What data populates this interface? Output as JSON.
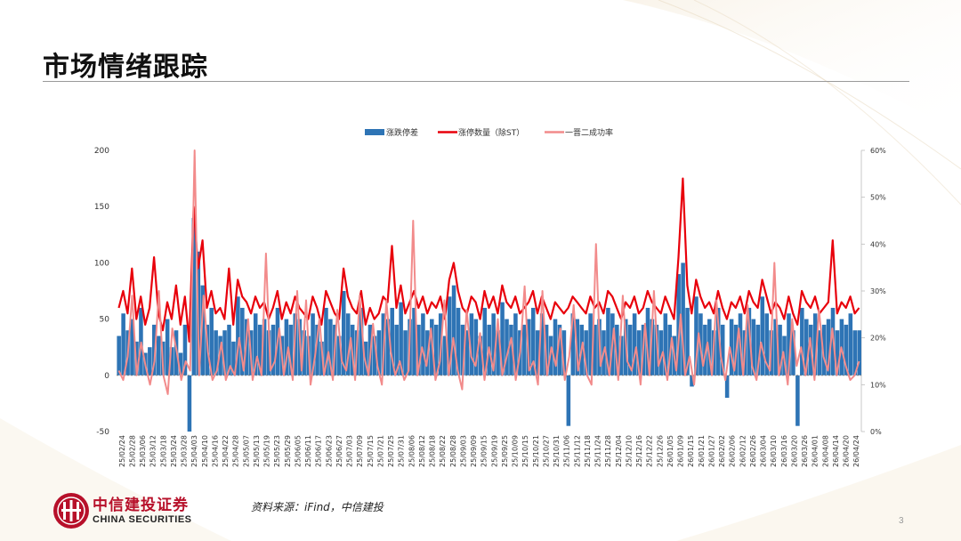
{
  "page": {
    "title": "市场情绪跟踪",
    "source": "资料来源：iFind，中信建投",
    "page_number": "3",
    "logo_cn": "中信建投证券",
    "logo_en": "CHINA SECURITIES",
    "colors": {
      "bar": "#2e74b5",
      "line_main": "#e8000b",
      "line_rate": "#f28b8b",
      "brand": "#b7102a"
    }
  },
  "chart_data": {
    "type": "bar+line",
    "legend": [
      "涨跌停差",
      "涨停数量（除ST）",
      "一晋二成功率"
    ],
    "y_left_ticks": [
      "200",
      "150",
      "100",
      "50",
      "0",
      "-50"
    ],
    "y_right_ticks": [
      "60%",
      "50%",
      "40%",
      "30%",
      "20%",
      "10%",
      "0%"
    ],
    "ylim_left": [
      -50,
      200
    ],
    "ylim_right": [
      0,
      60
    ],
    "x_tick_labels": [
      "25/02/24",
      "25/02/28",
      "25/03/06",
      "25/03/12",
      "25/03/18",
      "25/03/24",
      "25/03/28",
      "25/04/03",
      "25/04/10",
      "25/04/16",
      "25/04/22",
      "25/04/28",
      "25/05/07",
      "25/05/13",
      "25/05/19",
      "25/05/23",
      "25/05/29",
      "25/06/05",
      "25/06/11",
      "25/06/17",
      "25/06/23",
      "25/06/27",
      "25/07/03",
      "25/07/09",
      "25/07/15",
      "25/07/21",
      "25/07/25",
      "25/07/31",
      "25/08/06",
      "25/08/12",
      "25/08/18",
      "25/08/22",
      "25/08/28",
      "25/09/03",
      "25/09/09",
      "25/09/15",
      "25/09/19",
      "25/09/25",
      "25/10/09",
      "25/10/15",
      "25/10/21",
      "25/10/27",
      "25/10/31",
      "25/11/06",
      "25/11/12",
      "25/11/18",
      "25/11/24",
      "25/11/28",
      "25/12/04",
      "25/12/10",
      "25/12/16",
      "25/12/22",
      "25/12/26",
      "26/01/05",
      "26/01/09",
      "26/01/15",
      "26/01/21",
      "26/01/27",
      "26/02/02",
      "26/02/06",
      "26/02/12",
      "26/02/26",
      "26/03/04",
      "26/03/10",
      "26/03/16",
      "26/03/20",
      "26/03/26",
      "26/04/01",
      "26/04/08",
      "26/04/14",
      "26/04/20",
      "26/04/24"
    ],
    "series": [
      {
        "name": "涨跌停差",
        "type": "bar",
        "values": [
          35,
          55,
          40,
          50,
          30,
          60,
          20,
          25,
          45,
          35,
          30,
          50,
          25,
          40,
          20,
          45,
          -50,
          140,
          110,
          80,
          45,
          60,
          40,
          35,
          40,
          45,
          30,
          70,
          60,
          50,
          40,
          55,
          45,
          50,
          40,
          45,
          60,
          35,
          50,
          45,
          55,
          50,
          40,
          35,
          55,
          45,
          30,
          60,
          50,
          45,
          35,
          75,
          55,
          45,
          40,
          60,
          30,
          45,
          35,
          40,
          55,
          50,
          60,
          45,
          65,
          40,
          50,
          60,
          45,
          55,
          40,
          50,
          45,
          55,
          35,
          70,
          80,
          60,
          45,
          40,
          55,
          50,
          35,
          60,
          45,
          55,
          40,
          65,
          50,
          45,
          55,
          40,
          45,
          50,
          60,
          40,
          55,
          45,
          35,
          50,
          45,
          40,
          -45,
          55,
          50,
          45,
          40,
          55,
          45,
          50,
          40,
          60,
          55,
          45,
          35,
          50,
          45,
          55,
          40,
          45,
          60,
          50,
          45,
          40,
          55,
          45,
          35,
          90,
          100,
          60,
          -10,
          70,
          55,
          45,
          50,
          40,
          60,
          45,
          -20,
          50,
          45,
          55,
          40,
          60,
          50,
          45,
          70,
          55,
          40,
          50,
          45,
          35,
          55,
          40,
          -45,
          60,
          50,
          45,
          55,
          40,
          45,
          50,
          60,
          40,
          50,
          45,
          55,
          40,
          40
        ]
      },
      {
        "name": "涨停数量（除ST）",
        "type": "line",
        "values": [
          60,
          75,
          55,
          95,
          50,
          70,
          45,
          60,
          105,
          55,
          40,
          65,
          50,
          80,
          45,
          70,
          30,
          150,
          95,
          120,
          60,
          75,
          55,
          60,
          50,
          95,
          45,
          85,
          70,
          65,
          55,
          70,
          60,
          65,
          50,
          60,
          75,
          50,
          65,
          55,
          70,
          60,
          55,
          50,
          70,
          60,
          45,
          75,
          65,
          55,
          50,
          95,
          70,
          60,
          55,
          75,
          45,
          60,
          50,
          55,
          70,
          65,
          115,
          60,
          80,
          55,
          65,
          75,
          60,
          70,
          55,
          65,
          60,
          70,
          50,
          85,
          100,
          75,
          60,
          55,
          70,
          65,
          50,
          75,
          60,
          70,
          55,
          80,
          65,
          60,
          70,
          55,
          60,
          65,
          75,
          55,
          70,
          60,
          50,
          65,
          60,
          55,
          60,
          70,
          65,
          60,
          55,
          70,
          60,
          65,
          55,
          75,
          70,
          60,
          50,
          65,
          60,
          70,
          55,
          60,
          75,
          65,
          60,
          55,
          70,
          60,
          50,
          105,
          175,
          80,
          55,
          85,
          70,
          60,
          65,
          55,
          75,
          60,
          50,
          65,
          60,
          70,
          55,
          75,
          65,
          60,
          85,
          70,
          55,
          65,
          60,
          50,
          70,
          55,
          45,
          75,
          65,
          60,
          70,
          55,
          60,
          65,
          120,
          55,
          65,
          60,
          70,
          55,
          60
        ]
      },
      {
        "name": "一晋二成功率",
        "type": "line",
        "values": [
          13,
          11,
          16,
          29,
          12,
          19,
          14,
          10,
          15,
          30,
          12,
          8,
          22,
          17,
          11,
          15,
          13,
          60,
          12,
          29,
          17,
          11,
          13,
          19,
          11,
          14,
          12,
          20,
          13,
          24,
          11,
          16,
          12,
          38,
          13,
          15,
          22,
          12,
          18,
          11,
          30,
          13,
          28,
          10,
          16,
          24,
          12,
          17,
          11,
          26,
          15,
          13,
          20,
          11,
          29,
          16,
          12,
          23,
          14,
          10,
          28,
          17,
          12,
          15,
          11,
          13,
          45,
          12,
          18,
          14,
          22,
          11,
          15,
          28,
          12,
          20,
          13,
          9,
          26,
          16,
          14,
          21,
          11,
          18,
          13,
          24,
          12,
          16,
          20,
          11,
          17,
          31,
          13,
          15,
          10,
          30,
          12,
          18,
          14,
          22,
          11,
          16,
          27,
          13,
          19,
          12,
          10,
          40,
          14,
          18,
          12,
          22,
          11,
          29,
          15,
          13,
          18,
          10,
          23,
          12,
          30,
          14,
          17,
          11,
          20,
          13,
          25,
          12,
          16,
          10,
          21,
          14,
          19,
          12,
          28,
          16,
          11,
          18,
          13,
          22,
          12,
          27,
          14,
          11,
          19,
          15,
          13,
          36,
          12,
          17,
          10,
          24,
          14,
          18,
          12,
          20,
          11,
          26,
          16,
          13,
          22,
          12,
          18,
          14,
          11,
          12,
          15
        ]
      }
    ]
  }
}
